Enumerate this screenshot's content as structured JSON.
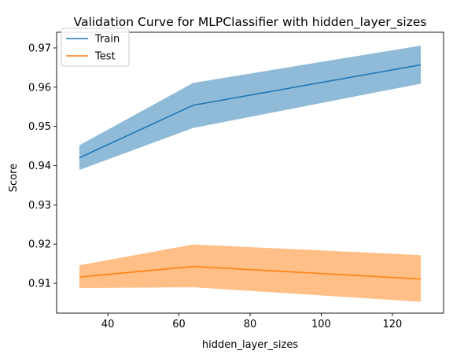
{
  "chart_data": {
    "type": "line",
    "title": "Validation Curve for MLPClassifier with hidden_layer_sizes",
    "xlabel": "hidden_layer_sizes",
    "ylabel": "Score",
    "x": [
      32,
      64,
      128
    ],
    "xlim": [
      25.6,
      134.4
    ],
    "ylim": [
      0.9024,
      0.974
    ],
    "xticks": [
      40,
      60,
      80,
      100,
      120
    ],
    "yticks": [
      0.91,
      0.92,
      0.93,
      0.94,
      0.95,
      0.96,
      0.97
    ],
    "grid": false,
    "legend_position": "top-left",
    "series": [
      {
        "name": "Train",
        "color": "#1f77b4",
        "band_color": "#1f77b4",
        "values": [
          0.942,
          0.9554,
          0.9657
        ],
        "lower": [
          0.9389,
          0.9496,
          0.9609
        ],
        "upper": [
          0.9452,
          0.9611,
          0.9706
        ]
      },
      {
        "name": "Test",
        "color": "#ff7f0e",
        "band_color": "#ff7f0e",
        "values": [
          0.9116,
          0.9143,
          0.9111
        ],
        "lower": [
          0.9088,
          0.909,
          0.9053
        ],
        "upper": [
          0.9146,
          0.9199,
          0.9172
        ]
      }
    ]
  }
}
